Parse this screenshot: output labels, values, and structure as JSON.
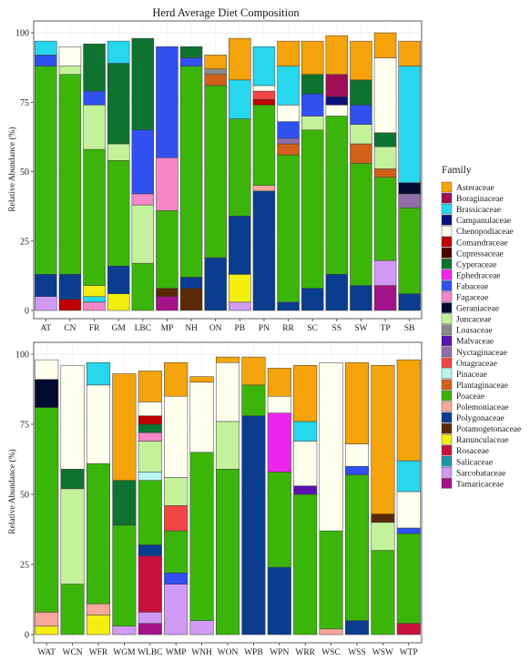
{
  "title": "Herd Average Diet Composition",
  "legend_title": "Family",
  "families": [
    {
      "name": "Asteraceae",
      "color": "#F5A30A"
    },
    {
      "name": "Boraginaceae",
      "color": "#9E0E55"
    },
    {
      "name": "Brassicaceae",
      "color": "#27D7EE"
    },
    {
      "name": "Campanulaceae",
      "color": "#0B0F7A"
    },
    {
      "name": "Chenopodiaceae",
      "color": "#FFFFEE"
    },
    {
      "name": "Comandraceae",
      "color": "#C00000"
    },
    {
      "name": "Cupressaceae",
      "color": "#4A0404"
    },
    {
      "name": "Cyperaceae",
      "color": "#0E7330"
    },
    {
      "name": "Ephedraceae",
      "color": "#EE24EE"
    },
    {
      "name": "Fabaceae",
      "color": "#3050F0"
    },
    {
      "name": "Fagaceae",
      "color": "#F487C8"
    },
    {
      "name": "Geraniaceae",
      "color": "#050A30"
    },
    {
      "name": "Juncaceae",
      "color": "#C4F29A"
    },
    {
      "name": "Loasaceae",
      "color": "#8A8A8A"
    },
    {
      "name": "Malvaceae",
      "color": "#5A12B0"
    },
    {
      "name": "Nyctaginaceae",
      "color": "#8E6FA8"
    },
    {
      "name": "Onagraceae",
      "color": "#F04545"
    },
    {
      "name": "Pinaceae",
      "color": "#B8F5F0"
    },
    {
      "name": "Plantaginaceae",
      "color": "#D2601A"
    },
    {
      "name": "Poaceae",
      "color": "#3CB50A"
    },
    {
      "name": "Polemoniaceae",
      "color": "#F7A89A"
    },
    {
      "name": "Polygonaceae",
      "color": "#0A3D8F"
    },
    {
      "name": "Potamogetonaceae",
      "color": "#5A2A08"
    },
    {
      "name": "Ranunculaceae",
      "color": "#F4EE10"
    },
    {
      "name": "Rosaceae",
      "color": "#C8123C"
    },
    {
      "name": "Salicaceae",
      "color": "#1F95A8"
    },
    {
      "name": "Sarcobataceae",
      "color": "#D09AF4"
    },
    {
      "name": "Tamaricaceae",
      "color": "#A4128A"
    }
  ],
  "chart_data": [
    {
      "type": "bar",
      "stacked": true,
      "panel": "top",
      "ylabel": "Relative Abundance (%)",
      "ylim": [
        0,
        100
      ],
      "yticks": [
        0,
        25,
        50,
        75,
        100
      ],
      "grid": true,
      "categories": [
        "AT",
        "CN",
        "FR",
        "GM",
        "LBC",
        "MP",
        "NH",
        "ON",
        "PB",
        "PN",
        "RR",
        "SC",
        "SS",
        "SW",
        "TP",
        "SB"
      ],
      "stacks": {
        "AT": [
          [
            "Sarcobataceae",
            5
          ],
          [
            "Polygonaceae",
            8
          ],
          [
            "Poaceae",
            75
          ],
          [
            "Fabaceae",
            4
          ],
          [
            "Brassicaceae",
            5
          ]
        ],
        "CN": [
          [
            "Comandraceae",
            4
          ],
          [
            "Polygonaceae",
            9
          ],
          [
            "Poaceae",
            72
          ],
          [
            "Juncaceae",
            3
          ],
          [
            "Chenopodiaceae",
            7
          ]
        ],
        "FR": [
          [
            "Fagaceae",
            3
          ],
          [
            "Brassicaceae",
            2
          ],
          [
            "Ranunculaceae",
            4
          ],
          [
            "Poaceae",
            49
          ],
          [
            "Juncaceae",
            16
          ],
          [
            "Fabaceae",
            5
          ],
          [
            "Cyperaceae",
            17
          ]
        ],
        "GM": [
          [
            "Ranunculaceae",
            6
          ],
          [
            "Polygonaceae",
            10
          ],
          [
            "Poaceae",
            38
          ],
          [
            "Juncaceae",
            6
          ],
          [
            "Cyperaceae",
            29
          ],
          [
            "Brassicaceae",
            8
          ]
        ],
        "LBC": [
          [
            "Poaceae",
            17
          ],
          [
            "Juncaceae",
            21
          ],
          [
            "Fagaceae",
            4
          ],
          [
            "Fabaceae",
            23
          ],
          [
            "Cyperaceae",
            33
          ]
        ],
        "MP": [
          [
            "Tamaricaceae",
            5
          ],
          [
            "Potamogetonaceae",
            3
          ],
          [
            "Poaceae",
            28
          ],
          [
            "Fagaceae",
            19
          ],
          [
            "Fabaceae",
            40
          ]
        ],
        "NH": [
          [
            "Potamogetonaceae",
            8
          ],
          [
            "Polygonaceae",
            4
          ],
          [
            "Poaceae",
            76
          ],
          [
            "Fabaceae",
            3
          ],
          [
            "Cyperaceae",
            4
          ]
        ],
        "ON": [
          [
            "Polygonaceae",
            19
          ],
          [
            "Poaceae",
            62
          ],
          [
            "Plantaginaceae",
            4
          ],
          [
            "Loasaceae",
            2
          ],
          [
            "Asteraceae",
            5
          ]
        ],
        "PB": [
          [
            "Sarcobataceae",
            3
          ],
          [
            "Ranunculaceae",
            10
          ],
          [
            "Polygonaceae",
            21
          ],
          [
            "Poaceae",
            35
          ],
          [
            "Brassicaceae",
            14
          ],
          [
            "Asteraceae",
            15
          ]
        ],
        "PN": [
          [
            "Polygonaceae",
            43
          ],
          [
            "Polemoniaceae",
            2
          ],
          [
            "Poaceae",
            29
          ],
          [
            "Comandraceae",
            2
          ],
          [
            "Onagraceae",
            3
          ],
          [
            "Chenopodiaceae",
            2
          ],
          [
            "Brassicaceae",
            14
          ]
        ],
        "RR": [
          [
            "Polygonaceae",
            3
          ],
          [
            "Poaceae",
            53
          ],
          [
            "Plantaginaceae",
            4
          ],
          [
            "Nyctaginaceae",
            2
          ],
          [
            "Fabaceae",
            6
          ],
          [
            "Chenopodiaceae",
            6
          ],
          [
            "Brassicaceae",
            14
          ],
          [
            "Asteraceae",
            9
          ]
        ],
        "SC": [
          [
            "Polygonaceae",
            8
          ],
          [
            "Poaceae",
            57
          ],
          [
            "Juncaceae",
            5
          ],
          [
            "Fabaceae",
            8
          ],
          [
            "Cyperaceae",
            7
          ],
          [
            "Asteraceae",
            12
          ]
        ],
        "SS": [
          [
            "Polygonaceae",
            13
          ],
          [
            "Poaceae",
            57
          ],
          [
            "Chenopodiaceae",
            4
          ],
          [
            "Campanulaceae",
            3
          ],
          [
            "Boraginaceae",
            8
          ],
          [
            "Asteraceae",
            14
          ]
        ],
        "SW": [
          [
            "Polygonaceae",
            9
          ],
          [
            "Poaceae",
            44
          ],
          [
            "Plantaginaceae",
            7
          ],
          [
            "Juncaceae",
            7
          ],
          [
            "Fabaceae",
            7
          ],
          [
            "Cyperaceae",
            9
          ],
          [
            "Asteraceae",
            14
          ]
        ],
        "TP": [
          [
            "Tamaricaceae",
            9
          ],
          [
            "Sarcobataceae",
            9
          ],
          [
            "Poaceae",
            30
          ],
          [
            "Plantaginaceae",
            3
          ],
          [
            "Juncaceae",
            8
          ],
          [
            "Cyperaceae",
            5
          ],
          [
            "Chenopodiaceae",
            27
          ],
          [
            "Asteraceae",
            9
          ]
        ],
        "SB": [
          [
            "Polygonaceae",
            6
          ],
          [
            "Poaceae",
            31
          ],
          [
            "Nyctaginaceae",
            5
          ],
          [
            "Geraniaceae",
            4
          ],
          [
            "Brassicaceae",
            42
          ],
          [
            "Asteraceae",
            9
          ]
        ]
      }
    },
    {
      "type": "bar",
      "stacked": true,
      "panel": "bottom",
      "ylabel": "Relative Abundance (%)",
      "ylim": [
        0,
        100
      ],
      "yticks": [
        0,
        25,
        50,
        75,
        100
      ],
      "grid": true,
      "categories": [
        "WAT",
        "WCN",
        "WFR",
        "WGM",
        "WLBC",
        "WMP",
        "WNH",
        "WON",
        "WPB",
        "WPN",
        "WRR",
        "WSC",
        "WSS",
        "WSW",
        "WTP"
      ],
      "stacks": {
        "WAT": [
          [
            "Ranunculaceae",
            3
          ],
          [
            "Polemoniaceae",
            5
          ],
          [
            "Poaceae",
            73
          ],
          [
            "Geraniaceae",
            10
          ],
          [
            "Chenopodiaceae",
            7
          ]
        ],
        "WCN": [
          [
            "Poaceae",
            18
          ],
          [
            "Juncaceae",
            34
          ],
          [
            "Cyperaceae",
            7
          ],
          [
            "Chenopodiaceae",
            37
          ]
        ],
        "WFR": [
          [
            "Ranunculaceae",
            7
          ],
          [
            "Polemoniaceae",
            4
          ],
          [
            "Poaceae",
            50
          ],
          [
            "Chenopodiaceae",
            28
          ],
          [
            "Brassicaceae",
            8
          ]
        ],
        "WGM": [
          [
            "Sarcobataceae",
            3
          ],
          [
            "Poaceae",
            36
          ],
          [
            "Cyperaceae",
            16
          ],
          [
            "Asteraceae",
            38
          ]
        ],
        "WLBC": [
          [
            "Tamaricaceae",
            4
          ],
          [
            "Sarcobataceae",
            4
          ],
          [
            "Rosaceae",
            20
          ],
          [
            "Polygonaceae",
            4
          ],
          [
            "Poaceae",
            23
          ],
          [
            "Pinaceae",
            3
          ],
          [
            "Juncaceae",
            11
          ],
          [
            "Fagaceae",
            3
          ],
          [
            "Cyperaceae",
            3
          ],
          [
            "Comandraceae",
            3
          ],
          [
            "Chenopodiaceae",
            5
          ],
          [
            "Asteraceae",
            11
          ]
        ],
        "WMP": [
          [
            "Sarcobataceae",
            18
          ],
          [
            "Fabaceae",
            4
          ],
          [
            "Poaceae",
            15
          ],
          [
            "Onagraceae",
            9
          ],
          [
            "Juncaceae",
            10
          ],
          [
            "Chenopodiaceae",
            29
          ],
          [
            "Asteraceae",
            12
          ]
        ],
        "WNH": [
          [
            "Sarcobataceae",
            5
          ],
          [
            "Poaceae",
            60
          ],
          [
            "Chenopodiaceae",
            25
          ],
          [
            "Asteraceae",
            2
          ]
        ],
        "WON": [
          [
            "Poaceae",
            59
          ],
          [
            "Juncaceae",
            17
          ],
          [
            "Chenopodiaceae",
            21
          ],
          [
            "Asteraceae",
            2
          ]
        ],
        "WPB": [
          [
            "Polygonaceae",
            78
          ],
          [
            "Poaceae",
            11
          ],
          [
            "Asteraceae",
            10
          ]
        ],
        "WPN": [
          [
            "Polygonaceae",
            24
          ],
          [
            "Poaceae",
            34
          ],
          [
            "Ephedraceae",
            21
          ],
          [
            "Chenopodiaceae",
            6
          ],
          [
            "Asteraceae",
            10
          ]
        ],
        "WRR": [
          [
            "Poaceae",
            50
          ],
          [
            "Malvaceae",
            3
          ],
          [
            "Chenopodiaceae",
            16
          ],
          [
            "Brassicaceae",
            7
          ],
          [
            "Asteraceae",
            20
          ]
        ],
        "WSC": [
          [
            "Polemoniaceae",
            2
          ],
          [
            "Poaceae",
            35
          ],
          [
            "Chenopodiaceae",
            60
          ]
        ],
        "WSS": [
          [
            "Polygonaceae",
            5
          ],
          [
            "Poaceae",
            52
          ],
          [
            "Fabaceae",
            3
          ],
          [
            "Chenopodiaceae",
            8
          ],
          [
            "Asteraceae",
            29
          ]
        ],
        "WSW": [
          [
            "Poaceae",
            30
          ],
          [
            "Juncaceae",
            10
          ],
          [
            "Potamogetonaceae",
            3
          ],
          [
            "Asteraceae",
            53
          ]
        ],
        "WTP": [
          [
            "Rosaceae",
            4
          ],
          [
            "Poaceae",
            32
          ],
          [
            "Fabaceae",
            2
          ],
          [
            "Chenopodiaceae",
            13
          ],
          [
            "Brassicaceae",
            11
          ],
          [
            "Asteraceae",
            36
          ]
        ]
      }
    }
  ]
}
